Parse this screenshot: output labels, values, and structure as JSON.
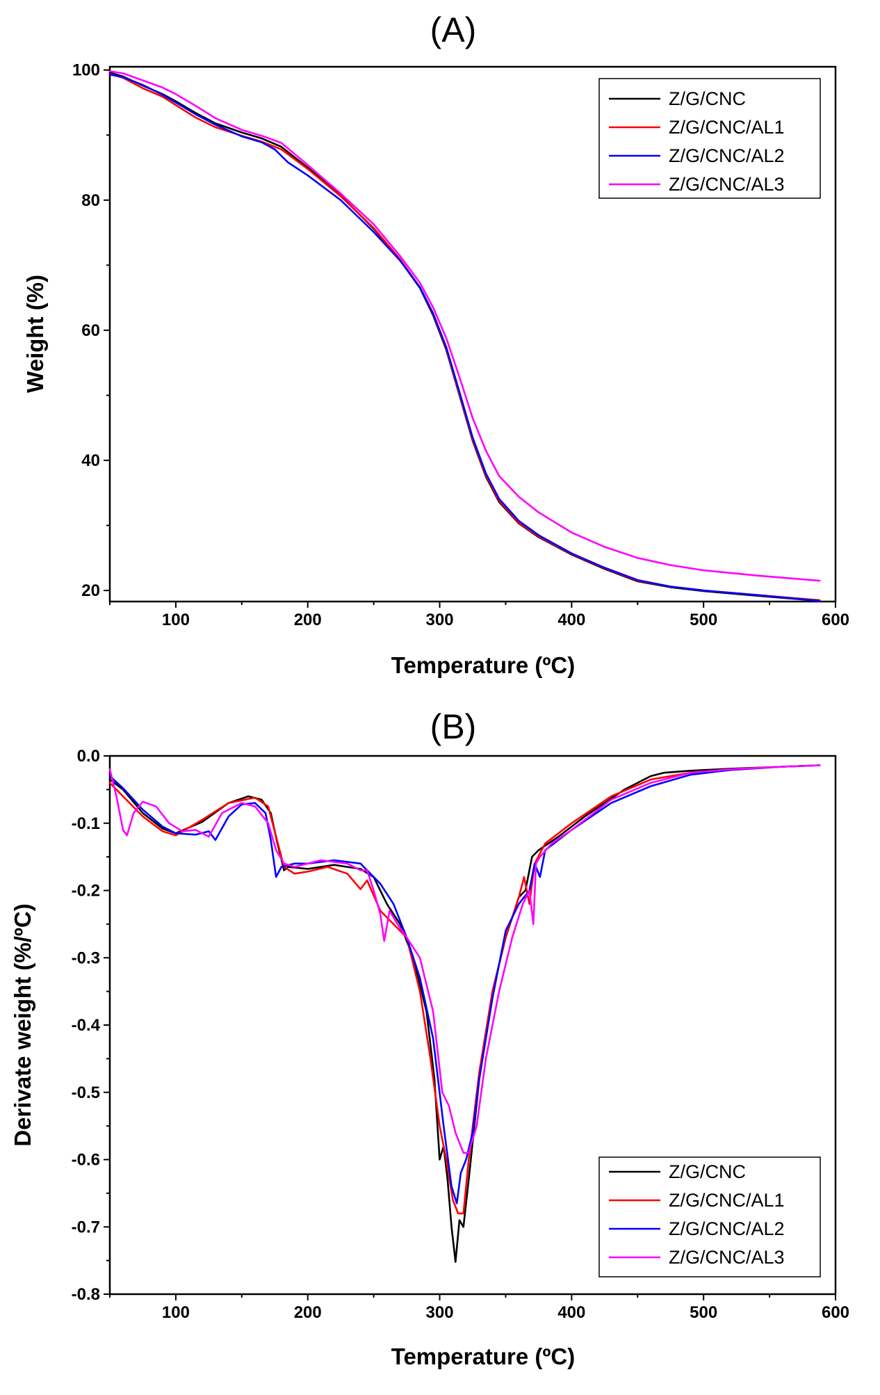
{
  "chart_data": [
    {
      "type": "line",
      "panel_label": "(A)",
      "xlabel": "Temperature (ºC)",
      "ylabel": "Weight (%)",
      "xlim": [
        50,
        600
      ],
      "ylim": [
        18.3,
        100.5
      ],
      "x_ticks": [
        100,
        200,
        300,
        400,
        500,
        600
      ],
      "y_ticks": [
        20,
        40,
        60,
        80,
        100
      ],
      "legend_position": "top-right",
      "series": [
        {
          "name": "Z/G/CNC",
          "color": "#000000",
          "x": [
            50,
            60,
            75,
            90,
            100,
            115,
            130,
            150,
            165,
            180,
            200,
            225,
            250,
            270,
            285,
            295,
            305,
            315,
            325,
            335,
            345,
            360,
            375,
            400,
            425,
            450,
            475,
            500,
            540,
            588
          ],
          "y": [
            99.6,
            99.0,
            97.6,
            96.3,
            95.2,
            93.4,
            91.8,
            90.4,
            89.5,
            88.2,
            85.0,
            80.7,
            75.6,
            70.8,
            66.5,
            62.3,
            57.0,
            50.0,
            43.0,
            37.5,
            33.6,
            30.3,
            28.2,
            25.5,
            23.3,
            21.4,
            20.5,
            19.9,
            19.2,
            18.4
          ]
        },
        {
          "name": "Z/G/CNC/AL1",
          "color": "#ff0000",
          "x": [
            50,
            60,
            75,
            90,
            100,
            115,
            130,
            150,
            165,
            180,
            200,
            225,
            250,
            270,
            285,
            295,
            305,
            315,
            325,
            335,
            345,
            360,
            375,
            400,
            425,
            450,
            475,
            500,
            540,
            588
          ],
          "y": [
            99.4,
            98.8,
            97.2,
            95.9,
            94.6,
            92.7,
            91.2,
            89.9,
            89.0,
            87.8,
            84.8,
            80.6,
            75.7,
            70.9,
            66.6,
            62.5,
            57.2,
            50.2,
            43.2,
            37.7,
            33.8,
            30.4,
            28.3,
            25.6,
            23.4,
            21.5,
            20.6,
            20.0,
            19.3,
            18.5
          ]
        },
        {
          "name": "Z/G/CNC/AL2",
          "color": "#0000ff",
          "x": [
            50,
            60,
            75,
            90,
            100,
            115,
            130,
            150,
            165,
            175,
            185,
            200,
            225,
            250,
            270,
            285,
            295,
            305,
            315,
            325,
            335,
            345,
            360,
            375,
            400,
            425,
            450,
            475,
            500,
            540,
            588
          ],
          "y": [
            99.3,
            98.9,
            97.7,
            96.2,
            95.0,
            93.2,
            91.6,
            89.8,
            88.9,
            87.8,
            85.8,
            83.8,
            80.0,
            75.1,
            70.7,
            66.6,
            62.6,
            57.4,
            50.5,
            43.5,
            38.0,
            34.1,
            30.7,
            28.5,
            25.7,
            23.5,
            21.6,
            20.6,
            20.0,
            19.3,
            18.4
          ]
        },
        {
          "name": "Z/G/CNC/AL3",
          "color": "#ff00ff",
          "x": [
            50,
            60,
            75,
            90,
            100,
            115,
            130,
            150,
            165,
            180,
            200,
            225,
            250,
            270,
            285,
            295,
            305,
            315,
            325,
            335,
            345,
            360,
            375,
            400,
            425,
            450,
            475,
            500,
            540,
            588
          ],
          "y": [
            99.8,
            99.5,
            98.4,
            97.3,
            96.3,
            94.5,
            92.6,
            90.8,
            89.9,
            88.8,
            85.4,
            81.0,
            76.3,
            71.4,
            67.3,
            63.5,
            58.8,
            52.8,
            46.5,
            41.5,
            37.6,
            34.4,
            32.0,
            28.9,
            26.7,
            25.0,
            23.9,
            23.1,
            22.3,
            21.5
          ]
        }
      ]
    },
    {
      "type": "line",
      "panel_label": "(B)",
      "xlabel": "Temperature (ºC)",
      "ylabel": "Derivate weight (%/ºC)",
      "xlim": [
        50,
        600
      ],
      "ylim": [
        -0.8,
        0.0
      ],
      "x_ticks": [
        100,
        200,
        300,
        400,
        500,
        600
      ],
      "y_ticks": [
        0.0,
        -0.1,
        -0.2,
        -0.3,
        -0.4,
        -0.5,
        -0.6,
        -0.7,
        -0.8
      ],
      "y_tick_labels": [
        "0.0",
        "-0.1",
        "-0.2",
        "-0.3",
        "-0.4",
        "-0.5",
        "-0.6",
        "-0.7",
        "-0.8"
      ],
      "legend_position": "bottom-right",
      "series": [
        {
          "name": "Z/G/CNC",
          "color": "#000000",
          "x": [
            50,
            60,
            75,
            90,
            100,
            120,
            140,
            155,
            165,
            172,
            177,
            182,
            185,
            200,
            220,
            240,
            250,
            260,
            270,
            280,
            290,
            296,
            300,
            303,
            306,
            309,
            312,
            315,
            318,
            322,
            330,
            340,
            350,
            360,
            365,
            370,
            375,
            390,
            410,
            440,
            460,
            470,
            490,
            520,
            560,
            588
          ],
          "y": [
            -0.035,
            -0.05,
            -0.085,
            -0.108,
            -0.115,
            -0.098,
            -0.07,
            -0.06,
            -0.065,
            -0.085,
            -0.13,
            -0.17,
            -0.165,
            -0.168,
            -0.162,
            -0.168,
            -0.18,
            -0.22,
            -0.25,
            -0.3,
            -0.38,
            -0.48,
            -0.6,
            -0.58,
            -0.63,
            -0.7,
            -0.752,
            -0.69,
            -0.7,
            -0.63,
            -0.48,
            -0.35,
            -0.27,
            -0.21,
            -0.2,
            -0.15,
            -0.14,
            -0.12,
            -0.09,
            -0.05,
            -0.03,
            -0.025,
            -0.022,
            -0.019,
            -0.016,
            -0.014
          ]
        },
        {
          "name": "Z/G/CNC/AL1",
          "color": "#ff0000",
          "x": [
            50,
            60,
            75,
            90,
            100,
            120,
            140,
            160,
            170,
            176,
            182,
            190,
            200,
            215,
            230,
            240,
            245,
            255,
            265,
            275,
            285,
            293,
            300,
            305,
            310,
            314,
            318,
            322,
            330,
            340,
            350,
            360,
            364,
            368,
            372,
            380,
            400,
            430,
            460,
            490,
            520,
            560,
            588
          ],
          "y": [
            -0.04,
            -0.06,
            -0.09,
            -0.112,
            -0.118,
            -0.095,
            -0.07,
            -0.062,
            -0.075,
            -0.12,
            -0.165,
            -0.175,
            -0.172,
            -0.165,
            -0.175,
            -0.198,
            -0.185,
            -0.23,
            -0.25,
            -0.27,
            -0.35,
            -0.45,
            -0.55,
            -0.6,
            -0.66,
            -0.68,
            -0.68,
            -0.6,
            -0.47,
            -0.35,
            -0.27,
            -0.21,
            -0.18,
            -0.22,
            -0.16,
            -0.13,
            -0.1,
            -0.06,
            -0.035,
            -0.025,
            -0.02,
            -0.016,
            -0.014
          ]
        },
        {
          "name": "Z/G/CNC/AL2",
          "color": "#0000ff",
          "x": [
            50,
            60,
            75,
            90,
            100,
            115,
            125,
            130,
            140,
            150,
            160,
            168,
            172,
            176,
            180,
            190,
            200,
            220,
            240,
            255,
            265,
            275,
            285,
            295,
            303,
            309,
            313,
            316,
            320,
            325,
            330,
            340,
            350,
            360,
            368,
            372,
            376,
            380,
            400,
            430,
            460,
            490,
            520,
            560,
            588
          ],
          "y": [
            -0.03,
            -0.048,
            -0.08,
            -0.105,
            -0.115,
            -0.117,
            -0.112,
            -0.125,
            -0.09,
            -0.072,
            -0.07,
            -0.085,
            -0.125,
            -0.18,
            -0.165,
            -0.16,
            -0.16,
            -0.155,
            -0.16,
            -0.19,
            -0.22,
            -0.27,
            -0.33,
            -0.42,
            -0.55,
            -0.64,
            -0.665,
            -0.62,
            -0.6,
            -0.56,
            -0.48,
            -0.36,
            -0.26,
            -0.22,
            -0.2,
            -0.16,
            -0.18,
            -0.14,
            -0.11,
            -0.07,
            -0.045,
            -0.028,
            -0.021,
            -0.016,
            -0.014
          ]
        },
        {
          "name": "Z/G/CNC/AL3",
          "color": "#ff00ff",
          "x": [
            50,
            55,
            60,
            63,
            68,
            75,
            85,
            95,
            105,
            115,
            125,
            135,
            150,
            160,
            170,
            176,
            182,
            190,
            210,
            230,
            240,
            245,
            250,
            255,
            258,
            262,
            268,
            275,
            285,
            295,
            302,
            307,
            312,
            318,
            322,
            328,
            335,
            345,
            355,
            363,
            368,
            371,
            373,
            376,
            385,
            400,
            430,
            460,
            490,
            520,
            560,
            588
          ],
          "y": [
            -0.02,
            -0.06,
            -0.11,
            -0.118,
            -0.085,
            -0.068,
            -0.075,
            -0.1,
            -0.112,
            -0.11,
            -0.12,
            -0.085,
            -0.07,
            -0.075,
            -0.1,
            -0.14,
            -0.16,
            -0.165,
            -0.155,
            -0.16,
            -0.17,
            -0.17,
            -0.2,
            -0.235,
            -0.275,
            -0.23,
            -0.25,
            -0.27,
            -0.3,
            -0.38,
            -0.5,
            -0.52,
            -0.56,
            -0.59,
            -0.59,
            -0.55,
            -0.45,
            -0.35,
            -0.27,
            -0.22,
            -0.2,
            -0.25,
            -0.16,
            -0.15,
            -0.13,
            -0.11,
            -0.065,
            -0.04,
            -0.025,
            -0.02,
            -0.016,
            -0.014
          ]
        }
      ]
    }
  ]
}
